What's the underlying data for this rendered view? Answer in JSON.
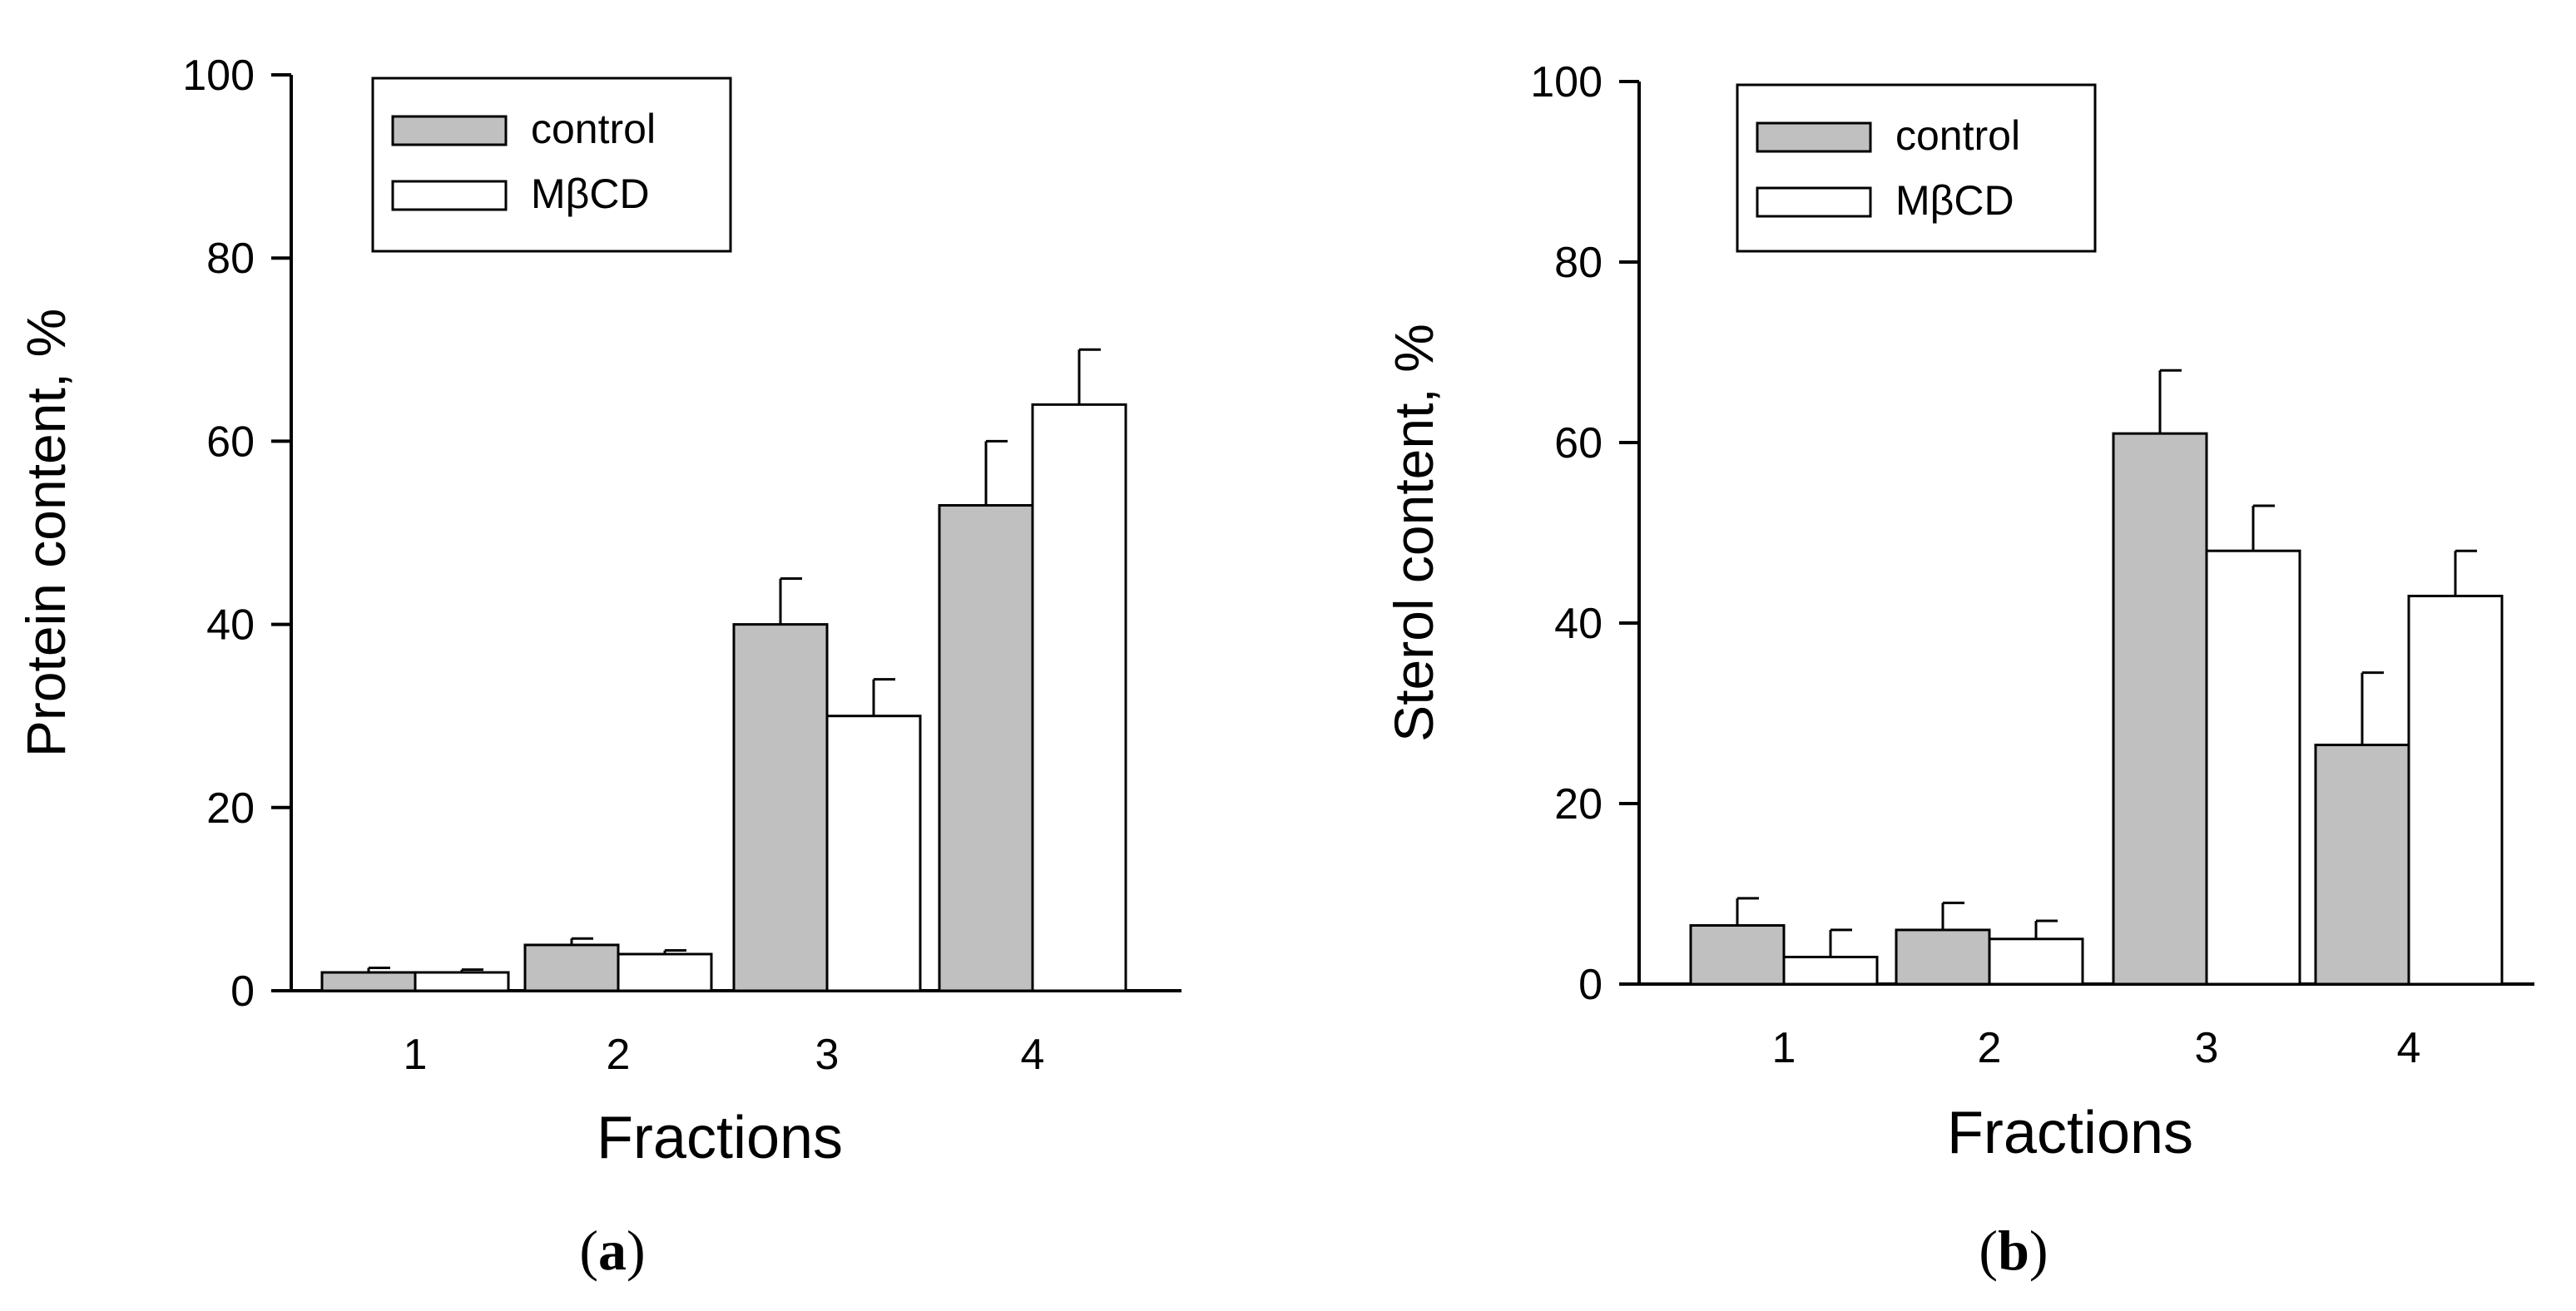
{
  "colors": {
    "control": "#c0c0c0",
    "mbcd": "#ffffff",
    "stroke": "#000000"
  },
  "chart_data": [
    {
      "type": "bar",
      "panel": "a",
      "caption": {
        "open": "(",
        "letter": "a",
        "close": ")"
      },
      "categories": [
        "1",
        "2",
        "3",
        "4"
      ],
      "xlabel": "Fractions",
      "ylabel": "Protein content, %",
      "ylim": [
        0,
        100
      ],
      "yticks": [
        "0",
        "20",
        "40",
        "60",
        "80",
        "100"
      ],
      "legend_position": "top-left",
      "series": [
        {
          "name": "control",
          "values": [
            2,
            5,
            40,
            53
          ],
          "errors": [
            0.5,
            0.7,
            5,
            7
          ]
        },
        {
          "name": "MβCD",
          "values": [
            2,
            4,
            30,
            64
          ],
          "errors": [
            0.3,
            0.4,
            4,
            6
          ]
        }
      ]
    },
    {
      "type": "bar",
      "panel": "b",
      "caption": {
        "open": "(",
        "letter": "b",
        "close": ")"
      },
      "categories": [
        "1",
        "2",
        "3",
        "4"
      ],
      "xlabel": "Fractions",
      "ylabel": "Sterol content, %",
      "ylim": [
        0,
        100
      ],
      "yticks": [
        "0",
        "20",
        "40",
        "60",
        "80",
        "100"
      ],
      "legend_position": "top-left",
      "series": [
        {
          "name": "control",
          "values": [
            6.5,
            6,
            61,
            26.5
          ],
          "errors": [
            3,
            3,
            7,
            8
          ]
        },
        {
          "name": "MβCD",
          "values": [
            3,
            5,
            48,
            43
          ],
          "errors": [
            3,
            2,
            5,
            5
          ]
        }
      ]
    }
  ]
}
